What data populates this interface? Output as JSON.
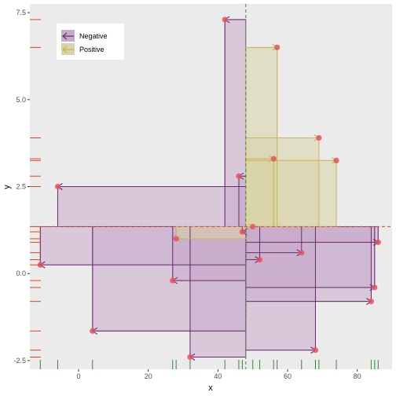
{
  "chart_data": {
    "type": "scatter",
    "title": "",
    "xlabel": "x",
    "ylabel": "y",
    "xlim": [
      -14,
      90
    ],
    "ylim": [
      -2.75,
      7.75
    ],
    "x_ticks": [
      0,
      20,
      40,
      60,
      80
    ],
    "y_ticks": [
      -2.5,
      0.0,
      2.5,
      5.0,
      7.5
    ],
    "y_tick_labels": [
      "-2.5",
      "0.0",
      "2.5",
      "5.0",
      "7.5"
    ],
    "grid": false,
    "legend_position": "top-left",
    "reference": {
      "x": 48,
      "y": 1.35
    },
    "colors": {
      "negative": "#6a2c70",
      "negative_fill": "#c8abcb",
      "positive": "#c9b458",
      "positive_fill": "#d9d3a8",
      "point": "#e8525f",
      "x_rug": "#2e8b2e",
      "y_rug": "#e3461e",
      "x_ref": "#3d8a4a",
      "y_ref": "#e3461e",
      "panel": "#ebebeb"
    },
    "legend": [
      {
        "label": "Negative",
        "key": "negative"
      },
      {
        "label": "Positive",
        "key": "positive"
      }
    ],
    "series": [
      {
        "name": "Negative",
        "points": [
          {
            "x": 42,
            "y": 7.3
          },
          {
            "x": 46,
            "y": 2.8
          },
          {
            "x": -6,
            "y": 2.5
          },
          {
            "x": 47,
            "y": 1.2
          },
          {
            "x": 52,
            "y": 0.4
          },
          {
            "x": 64,
            "y": 0.6
          },
          {
            "x": 86,
            "y": 0.9
          },
          {
            "x": 85,
            "y": -0.4
          },
          {
            "x": 84,
            "y": -0.8
          },
          {
            "x": 68,
            "y": -2.2
          },
          {
            "x": 27,
            "y": -0.2
          },
          {
            "x": -11,
            "y": 0.25
          },
          {
            "x": 4,
            "y": -1.65
          },
          {
            "x": 32,
            "y": -2.4
          }
        ]
      },
      {
        "name": "Positive",
        "points": [
          {
            "x": 57,
            "y": 6.5
          },
          {
            "x": 69,
            "y": 3.9
          },
          {
            "x": 74,
            "y": 3.25
          },
          {
            "x": 56,
            "y": 3.3
          },
          {
            "x": 50,
            "y": 1.35
          },
          {
            "x": 28,
            "y": 1.0
          }
        ]
      }
    ]
  }
}
